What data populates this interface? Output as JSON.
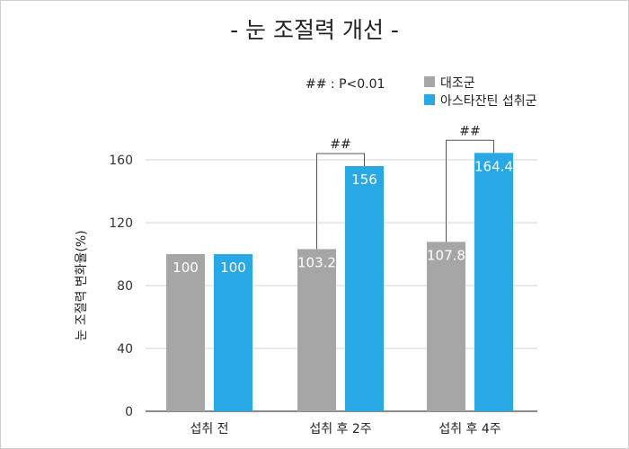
{
  "title": "- 눈 조절력 개선 -",
  "colors": {
    "control": "#a6a6a6",
    "treatment": "#29a8e6"
  },
  "chart_data": {
    "type": "bar",
    "categories": [
      "섭취 전",
      "섭취 후 2주",
      "섭취 후 4주"
    ],
    "series": [
      {
        "name": "대조군",
        "values": [
          100,
          103.2,
          107.8
        ],
        "labels": [
          "100",
          "103.2",
          "107.8"
        ]
      },
      {
        "name": "아스타잔틴 섭취군",
        "values": [
          100,
          156,
          164.4
        ],
        "labels": [
          "100",
          "156",
          "164.4"
        ]
      }
    ],
    "ylabel": "눈 조절력 변화율(%)",
    "ylim": [
      0,
      170
    ],
    "yticks": [
      0,
      40,
      80,
      120,
      160
    ],
    "ytick_labels": [
      "0",
      "40",
      "80",
      "120",
      "160"
    ],
    "grid": true,
    "legend_position": "top-right",
    "significance_note": "## : P<0.01",
    "significance_markers": [
      {
        "category": "섭취 후 2주",
        "label": "##"
      },
      {
        "category": "섭취 후 4주",
        "label": "##"
      }
    ]
  }
}
